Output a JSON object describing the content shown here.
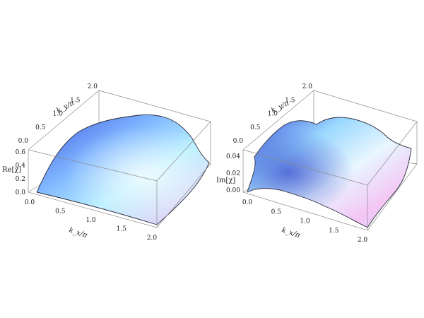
{
  "chart_data": [
    {
      "type": "surface3d",
      "xlabel": "k_x/π",
      "ylabel": "k_y/π",
      "zlabel": "Re[χ]",
      "x_ticks": [
        "0.0",
        "0.5",
        "1.0",
        "1.5",
        "2.0"
      ],
      "y_ticks": [
        "0.0",
        "0.5",
        "1.0",
        "1.5",
        "2.0"
      ],
      "z_ticks": [
        "0.0",
        "0.2",
        "0.4",
        "0.6"
      ],
      "xlim": [
        0,
        2
      ],
      "ylim": [
        0,
        2
      ],
      "zlim": [
        0,
        0.6
      ],
      "peak_at": [
        1.0,
        1.0
      ],
      "peak_value": 0.52,
      "colors": {
        "low": "#3f55e0",
        "mid": "#90e4ff",
        "high": "#f0c8f4"
      }
    },
    {
      "type": "surface3d",
      "xlabel": "k_x/π",
      "ylabel": "k_y/π",
      "zlabel": "Im[χ]",
      "x_ticks": [
        "0.0",
        "0.5",
        "1.0",
        "1.5",
        "2.0"
      ],
      "y_ticks": [
        "0.0",
        "0.5",
        "1.0",
        "1.5",
        "2.0"
      ],
      "z_ticks": [
        "0.00",
        "0.02",
        "0.04"
      ],
      "xlim": [
        0,
        2
      ],
      "ylim": [
        0,
        2
      ],
      "zlim": [
        0,
        0.05
      ],
      "plateau_value": 0.045,
      "colors": {
        "low": "#3f55e0",
        "mid": "#90e4ff",
        "high": "#f0c8f4"
      }
    }
  ]
}
